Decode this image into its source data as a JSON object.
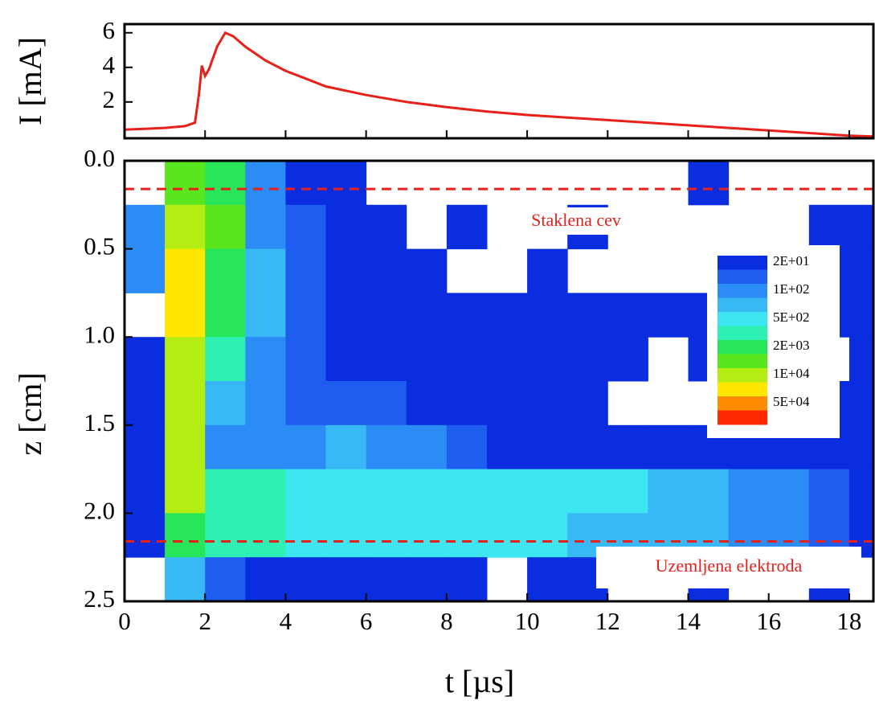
{
  "chart_data": [
    {
      "type": "line",
      "ylabel": "I [mA]",
      "x": [
        0,
        0.5,
        1,
        1.5,
        1.75,
        1.85,
        1.92,
        2.0,
        2.1,
        2.3,
        2.5,
        2.7,
        3,
        3.5,
        4,
        5,
        6,
        7,
        8,
        9,
        10,
        11,
        12,
        13,
        14,
        15,
        16,
        17,
        18,
        18.6
      ],
      "values": [
        0.4,
        0.45,
        0.5,
        0.6,
        0.8,
        2.5,
        4.1,
        3.5,
        3.9,
        5.2,
        6.0,
        5.8,
        5.2,
        4.4,
        3.8,
        2.9,
        2.4,
        2.0,
        1.7,
        1.45,
        1.25,
        1.1,
        0.95,
        0.8,
        0.65,
        0.5,
        0.35,
        0.2,
        0.05,
        0.0
      ],
      "color": "#e8201a",
      "xlim": [
        0,
        18.6
      ],
      "ylim": [
        -0.1,
        6.5
      ],
      "yticks": [
        2,
        4,
        6
      ]
    },
    {
      "type": "heatmap",
      "xlabel": "t [µs]",
      "ylabel": "z [cm]",
      "x": [
        0.5,
        1.5,
        2.5,
        3.5,
        4.5,
        5.5,
        6.5,
        7.5,
        8.5,
        9.5,
        10.5,
        11.5,
        12.5,
        13.5,
        14.5,
        15.5,
        16.5,
        17.5,
        18.5
      ],
      "y": [
        0.125,
        0.375,
        0.625,
        0.875,
        1.125,
        1.375,
        1.625,
        1.875,
        2.125,
        2.375
      ],
      "values": [
        [
          null,
          5000,
          2000,
          100,
          20,
          20,
          null,
          null,
          null,
          null,
          null,
          null,
          null,
          null,
          20,
          null,
          null,
          null,
          null
        ],
        [
          200,
          20000,
          5000,
          200,
          50,
          20,
          20,
          null,
          20,
          null,
          null,
          20,
          null,
          null,
          null,
          null,
          null,
          20,
          20
        ],
        [
          100,
          30000,
          3000,
          300,
          50,
          20,
          20,
          20,
          null,
          null,
          20,
          null,
          null,
          null,
          null,
          null,
          20,
          20,
          20
        ],
        [
          null,
          30000,
          2000,
          300,
          50,
          30,
          20,
          20,
          20,
          20,
          20,
          20,
          20,
          20,
          20,
          20,
          20,
          20,
          20
        ],
        [
          20,
          20000,
          1000,
          200,
          50,
          30,
          20,
          20,
          20,
          20,
          20,
          20,
          20,
          null,
          20,
          20,
          20,
          null,
          20
        ],
        [
          20,
          20000,
          300,
          100,
          50,
          50,
          50,
          30,
          20,
          20,
          20,
          20,
          null,
          null,
          null,
          20,
          20,
          20,
          20
        ],
        [
          20,
          10000,
          200,
          150,
          200,
          300,
          150,
          100,
          50,
          30,
          20,
          20,
          20,
          20,
          20,
          20,
          20,
          20,
          20
        ],
        [
          20,
          10000,
          1000,
          1000,
          800,
          700,
          700,
          600,
          600,
          600,
          500,
          500,
          500,
          400,
          300,
          200,
          100,
          50,
          20
        ],
        [
          20,
          3000,
          1500,
          1000,
          900,
          800,
          700,
          700,
          600,
          500,
          500,
          400,
          400,
          300,
          250,
          200,
          100,
          50,
          20
        ],
        [
          null,
          300,
          50,
          20,
          20,
          20,
          20,
          20,
          20,
          null,
          20,
          20,
          null,
          null,
          20,
          null,
          null,
          20,
          null
        ]
      ],
      "xlim": [
        0,
        18.6
      ],
      "xticks": [
        0,
        2,
        4,
        6,
        8,
        10,
        12,
        14,
        16,
        18
      ],
      "ylim": [
        0,
        2.5
      ],
      "yticks": [
        {
          "value": 0,
          "label": "0.0"
        },
        0.5,
        {
          "value": 1,
          "label": "1.0"
        },
        1.5,
        {
          "value": 2,
          "label": "2.0"
        },
        2.5
      ],
      "levels": [
        {
          "value": 20,
          "label": "2E+01"
        },
        {
          "value": 100,
          "label": "1E+02"
        },
        {
          "value": 500,
          "label": "5E+02"
        },
        {
          "value": 2000,
          "label": "2E+03"
        },
        {
          "value": 10000,
          "label": "1E+04"
        },
        {
          "value": 50000,
          "label": "5E+04"
        }
      ],
      "colors": [
        "#0b2de0",
        "#1f5cf0",
        "#2b8cf5",
        "#38b8f5",
        "#3de6f0",
        "#2ef0b4",
        "#27e65a",
        "#5ae61e",
        "#b4ed14",
        "#ffe600",
        "#ff8c00",
        "#ff2a00"
      ],
      "reference_lines": {
        "values": [
          0.16,
          2.16
        ],
        "color": "#e8201a"
      },
      "annotations": [
        "Staklena cev",
        "Uzemljena elektroda"
      ]
    }
  ]
}
